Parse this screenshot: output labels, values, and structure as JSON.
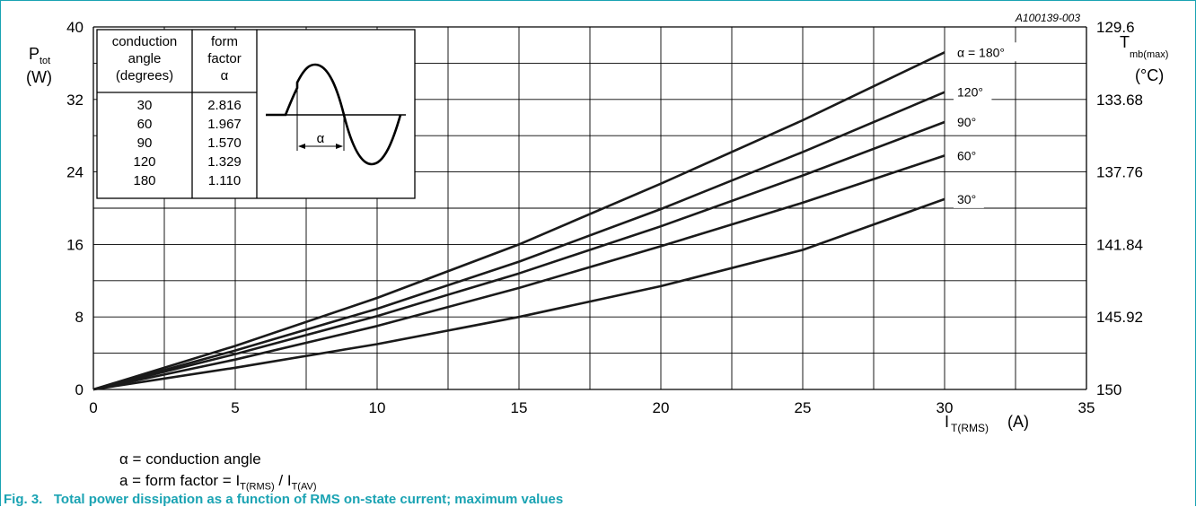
{
  "figure": {
    "code": "A100139-003",
    "caption_prefix": "Fig. 3.",
    "caption": "Total power dissipation as a function of RMS on-state current; maximum values",
    "note_alpha": "α = conduction angle",
    "note_ff_prefix": "a = form factor = I",
    "note_ff_sub1": "T(RMS)",
    "note_ff_mid": " / I",
    "note_ff_sub2": "T(AV)"
  },
  "table": {
    "headers": [
      [
        "conduction",
        "angle",
        "(degrees)"
      ],
      [
        "form",
        "factor",
        "α"
      ]
    ],
    "rows": [
      [
        "30",
        "2.816"
      ],
      [
        "60",
        "1.967"
      ],
      [
        "90",
        "1.570"
      ],
      [
        "120",
        "1.329"
      ],
      [
        "180",
        "1.110"
      ]
    ],
    "alpha_symbol": "α"
  },
  "chart_data": {
    "type": "line",
    "x": [
      0,
      5,
      10,
      15,
      20,
      25,
      30
    ],
    "series": [
      {
        "name": "α = 180°",
        "values": [
          0,
          4.8,
          10.1,
          16.0,
          22.7,
          29.7,
          37.2
        ]
      },
      {
        "name": "120°",
        "values": [
          0,
          4.3,
          8.9,
          14.1,
          19.9,
          26.2,
          32.8
        ]
      },
      {
        "name": "90°",
        "values": [
          0,
          3.9,
          8.1,
          12.8,
          18.0,
          23.6,
          29.5
        ]
      },
      {
        "name": "60°",
        "values": [
          0,
          3.3,
          7.0,
          11.2,
          15.8,
          20.6,
          25.8
        ]
      },
      {
        "name": "30°",
        "values": [
          0,
          2.4,
          5.0,
          8.0,
          11.4,
          15.4,
          21.0
        ]
      }
    ],
    "xlim": [
      0,
      35
    ],
    "ylim": [
      0,
      40
    ],
    "x_ticks": [
      "0",
      "5",
      "10",
      "15",
      "20",
      "25",
      "30",
      "35"
    ],
    "y_ticks": [
      "0",
      "8",
      "16",
      "24",
      "32",
      "40"
    ],
    "y2_ticks": [
      "150",
      "145.92",
      "141.84",
      "137.76",
      "133.68",
      "129.6"
    ],
    "xlabel_main": "I",
    "xlabel_sub": "T(RMS)",
    "xlabel_unit": "(A)",
    "ylabel_main": "P",
    "ylabel_sub": "tot",
    "ylabel_unit": "(W)",
    "y2label_main": "T",
    "y2label_sub": "mb(max)",
    "y2label_unit": "(°C)",
    "grid": true
  }
}
